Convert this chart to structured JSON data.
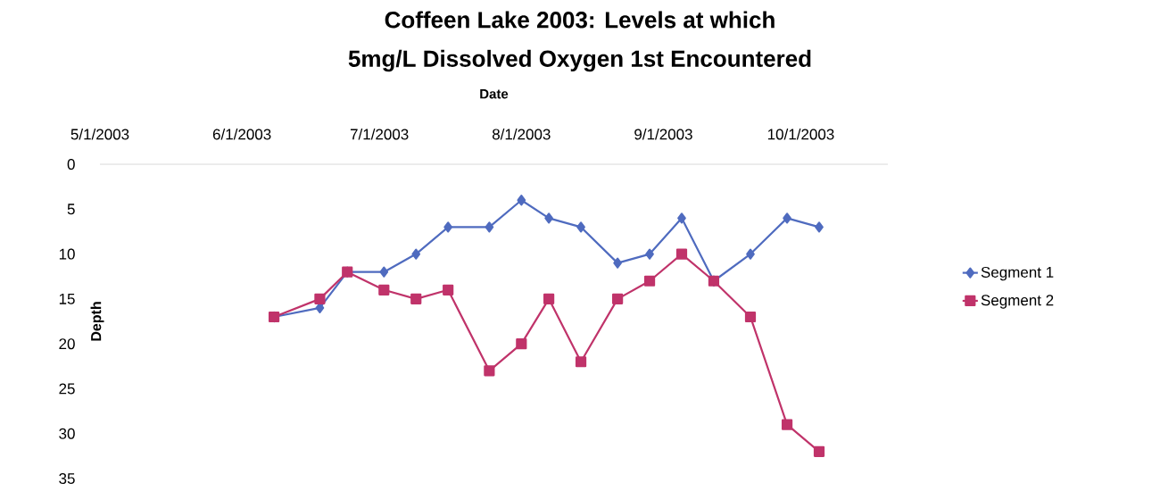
{
  "chart_data": {
    "type": "line",
    "title": "Coffeen Lake 2003: Levels at which",
    "subtitle": "5mg/L Dissolved Oxygen 1st Encountered",
    "xlabel": "Date",
    "ylabel": "Depth",
    "x": [
      "2003-06-08",
      "2003-06-18",
      "2003-06-24",
      "2003-07-02",
      "2003-07-09",
      "2003-07-16",
      "2003-07-25",
      "2003-08-01",
      "2003-08-07",
      "2003-08-14",
      "2003-08-22",
      "2003-08-29",
      "2003-09-05",
      "2003-09-12",
      "2003-09-20",
      "2003-09-28",
      "2003-10-05"
    ],
    "series": [
      {
        "name": "Segment 1",
        "color": "#4f6bbf",
        "marker": "diamond",
        "values": [
          17,
          16,
          12,
          12,
          10,
          7,
          7,
          4,
          6,
          7,
          11,
          10,
          6,
          13,
          10,
          6,
          7
        ]
      },
      {
        "name": "Segment 2",
        "color": "#c0336a",
        "marker": "square",
        "values": [
          17,
          15,
          12,
          14,
          15,
          14,
          23,
          20,
          15,
          22,
          15,
          13,
          10,
          13,
          17,
          29,
          32
        ]
      }
    ],
    "xticks": [
      {
        "value": "2003-05-01",
        "label": "5/1/2003"
      },
      {
        "value": "2003-06-01",
        "label": "6/1/2003"
      },
      {
        "value": "2003-07-01",
        "label": "7/1/2003"
      },
      {
        "value": "2003-08-01",
        "label": "8/1/2003"
      },
      {
        "value": "2003-09-01",
        "label": "9/1/2003"
      },
      {
        "value": "2003-10-01",
        "label": "10/1/2003"
      }
    ],
    "xlim": [
      "2003-05-01",
      "2003-10-20"
    ],
    "ylim": [
      35,
      0
    ],
    "yticks": [
      0,
      5,
      10,
      15,
      20,
      25,
      30,
      35
    ],
    "grid": false,
    "legend": "right",
    "line_style": "solid"
  }
}
